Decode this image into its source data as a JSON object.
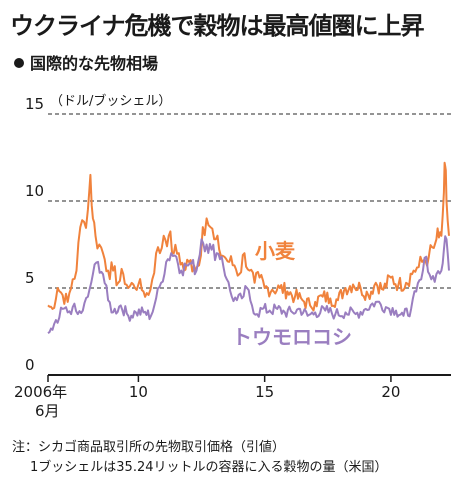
{
  "header": {
    "title": "ウクライナ危機で穀物は最高値圏に上昇",
    "subtitle": "国際的な先物相場"
  },
  "footer": {
    "note1": "注：シカゴ商品取引所の先物取引価格（引値）",
    "note2": "1ブッシェルは35.24リットルの容器に入る穀物の量（米国）"
  },
  "colors": {
    "wheat": "#f0823c",
    "corn": "#9a7ec0",
    "gridline": "#555555",
    "axis": "#1a1a1a"
  },
  "chart_data": {
    "type": "line",
    "title": "ウクライナ危機で穀物は最高値圏に上昇",
    "subtitle": "国際的な先物相場",
    "unit_label": "（ドル/ブッシェル）",
    "ylim": [
      0,
      15
    ],
    "y_ticks": [
      0,
      5,
      10,
      15
    ],
    "y_tick_labels": [
      "0",
      "5",
      "10",
      "15"
    ],
    "xlim": [
      2006.42,
      2022.3
    ],
    "x_ticks": [
      2006.42,
      2010,
      2015,
      2020
    ],
    "x_tick_labels": [
      "2006年",
      "10",
      "15",
      "20"
    ],
    "x_tick_sublabels": [
      "6月",
      "",
      "",
      ""
    ],
    "grid": "dashed horizontal at 5, 10, 15",
    "series": [
      {
        "name": "小麦",
        "color": "#f0823c",
        "x": [
          2006.42,
          2006.6,
          2006.8,
          2007.0,
          2007.2,
          2007.4,
          2007.55,
          2007.7,
          2007.85,
          2008.0,
          2008.1,
          2008.2,
          2008.3,
          2008.45,
          2008.6,
          2008.8,
          2009.0,
          2009.2,
          2009.4,
          2009.6,
          2009.8,
          2010.0,
          2010.2,
          2010.4,
          2010.55,
          2010.7,
          2010.85,
          2011.0,
          2011.2,
          2011.4,
          2011.6,
          2011.8,
          2012.0,
          2012.2,
          2012.4,
          2012.55,
          2012.7,
          2012.85,
          2013.0,
          2013.2,
          2013.4,
          2013.6,
          2013.8,
          2014.0,
          2014.2,
          2014.4,
          2014.6,
          2014.8,
          2015.0,
          2015.3,
          2015.6,
          2015.9,
          2016.2,
          2016.5,
          2016.8,
          2017.0,
          2017.3,
          2017.6,
          2017.9,
          2018.2,
          2018.5,
          2018.8,
          2019.1,
          2019.4,
          2019.7,
          2020.0,
          2020.3,
          2020.6,
          2020.9,
          2021.1,
          2021.3,
          2021.5,
          2021.7,
          2021.8,
          2021.9,
          2022.0,
          2022.1,
          2022.15,
          2022.2,
          2022.3
        ],
        "values": [
          4.0,
          3.8,
          5.0,
          4.6,
          4.2,
          5.5,
          6.0,
          8.5,
          8.8,
          9.5,
          11.5,
          9.0,
          8.0,
          7.5,
          7.0,
          6.0,
          6.0,
          5.3,
          5.8,
          5.0,
          5.2,
          5.2,
          4.8,
          4.6,
          5.5,
          7.0,
          7.0,
          8.0,
          8.0,
          7.0,
          7.0,
          6.0,
          6.5,
          6.3,
          6.3,
          8.5,
          9.0,
          8.5,
          7.8,
          7.2,
          6.8,
          6.5,
          6.3,
          5.8,
          7.0,
          6.0,
          5.3,
          5.6,
          5.0,
          4.9,
          5.0,
          4.8,
          4.5,
          4.3,
          4.0,
          4.2,
          4.5,
          4.4,
          4.3,
          5.0,
          5.2,
          5.0,
          4.6,
          5.3,
          4.9,
          5.6,
          5.2,
          5.3,
          6.0,
          6.2,
          6.6,
          6.8,
          7.3,
          7.8,
          7.9,
          8.0,
          10.5,
          12.0,
          10.0,
          8.0
        ]
      },
      {
        "name": "トウモロコシ",
        "color": "#9a7ec0",
        "x": [
          2006.42,
          2006.6,
          2006.8,
          2007.0,
          2007.2,
          2007.4,
          2007.6,
          2007.8,
          2008.0,
          2008.2,
          2008.4,
          2008.6,
          2008.8,
          2009.0,
          2009.3,
          2009.6,
          2009.9,
          2010.2,
          2010.5,
          2010.7,
          2010.9,
          2011.1,
          2011.3,
          2011.5,
          2011.7,
          2011.9,
          2012.1,
          2012.3,
          2012.5,
          2012.7,
          2012.9,
          2013.1,
          2013.3,
          2013.5,
          2013.7,
          2013.9,
          2014.1,
          2014.3,
          2014.5,
          2014.7,
          2014.9,
          2015.2,
          2015.5,
          2015.8,
          2016.1,
          2016.4,
          2016.7,
          2017.0,
          2017.4,
          2017.8,
          2018.2,
          2018.6,
          2019.0,
          2019.4,
          2019.8,
          2020.2,
          2020.5,
          2020.8,
          2021.0,
          2021.2,
          2021.4,
          2021.6,
          2021.8,
          2022.0,
          2022.1,
          2022.2,
          2022.3
        ],
        "values": [
          2.4,
          2.6,
          3.0,
          3.8,
          3.6,
          3.9,
          3.5,
          3.7,
          4.5,
          5.8,
          6.5,
          5.8,
          4.3,
          3.6,
          4.0,
          3.4,
          3.6,
          3.6,
          3.4,
          4.4,
          5.3,
          6.5,
          7.0,
          6.8,
          6.0,
          6.3,
          6.4,
          6.0,
          7.8,
          7.5,
          7.2,
          7.0,
          6.8,
          5.5,
          4.5,
          4.3,
          4.4,
          5.0,
          4.0,
          3.5,
          3.8,
          3.7,
          3.8,
          3.6,
          3.6,
          3.8,
          3.4,
          3.6,
          3.7,
          3.5,
          3.6,
          3.5,
          3.8,
          4.2,
          3.9,
          3.7,
          3.4,
          3.8,
          4.8,
          5.5,
          6.8,
          5.5,
          5.8,
          6.0,
          7.2,
          7.8,
          6.0
        ]
      }
    ],
    "annotations": [
      {
        "text": "小麦",
        "series": "小麦"
      },
      {
        "text": "トウモロコシ",
        "series": "トウモロコシ"
      }
    ]
  }
}
